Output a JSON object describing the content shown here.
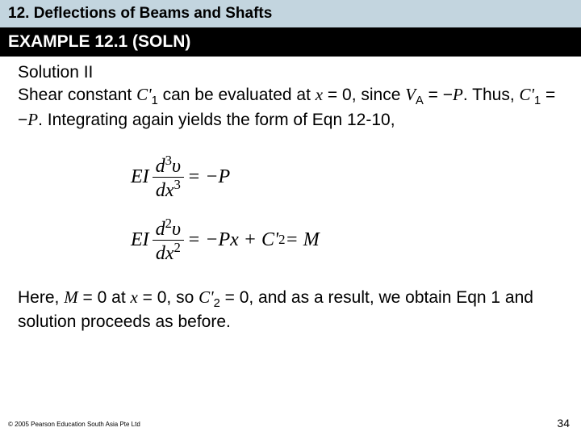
{
  "chapter_bar": {
    "text": "12. Deflections of Beams and Shafts",
    "bg_color": "#c3d5df",
    "font_size": 19,
    "font_weight": "bold"
  },
  "example_bar": {
    "text": "EXAMPLE 12.1 (SOLN)",
    "bg_color": "#000000",
    "color": "#ffffff",
    "font_size": 21,
    "font_weight": "bold"
  },
  "solution_heading": "Solution II",
  "para1": {
    "t1": "Shear constant ",
    "c1": "C'",
    "sub1": "1",
    "t2": " can be evaluated at ",
    "x": "x",
    "t3": " = 0, since ",
    "va_v": "V",
    "va_a": "A",
    "t4": " = ",
    "minus1": "−",
    "p1": "P",
    "t5": ". Thus, ",
    "c2": "C'",
    "sub2": "1",
    "t6": " = ",
    "minus2": "−",
    "p2": "P",
    "t7": ". Integrating again yields the form of Eqn 12-10,"
  },
  "eq1": {
    "ei": "EI",
    "num_d": "d",
    "num_sup": "3",
    "num_var": "υ",
    "den_d": "dx",
    "den_sup": "3",
    "rhs": " = −P"
  },
  "eq2": {
    "ei": "EI",
    "num_d": "d",
    "num_sup": "2",
    "num_var": "υ",
    "den_d": "dx",
    "den_sup": "2",
    "rhs1": " = −Px + C'",
    "rhs_sub": "2",
    "rhs2": " = M"
  },
  "para2": {
    "t1": "Here, ",
    "m": "M",
    "t2": " = 0 at ",
    "x": "x",
    "t3": " = 0, so ",
    "c": "C'",
    "sub": "2",
    "t4": " = 0, and as a result, we obtain Eqn 1 and solution proceeds as before."
  },
  "copyright": "© 2005 Pearson Education South Asia Pte Ltd",
  "page_number": "34",
  "body_font_size": 21,
  "eq_font_size": 24,
  "eq_font_family": "Times New Roman"
}
